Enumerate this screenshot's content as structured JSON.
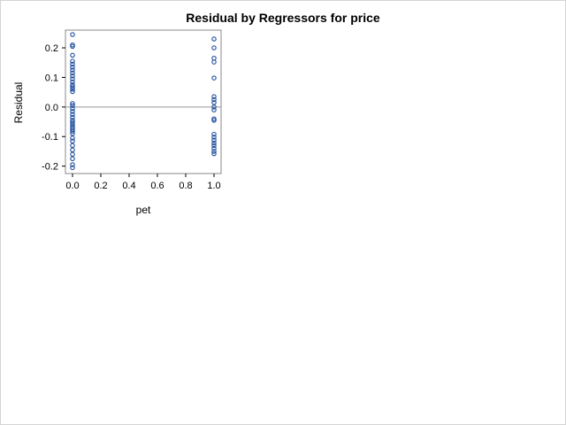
{
  "chart_data": {
    "type": "scatter",
    "title": "Residual by Regressors for price",
    "xlabel": "pet",
    "ylabel": "Residual",
    "xlim": [
      -0.05,
      1.05
    ],
    "ylim": [
      -0.225,
      0.26
    ],
    "xticks": [
      "0.0",
      "0.2",
      "0.4",
      "0.6",
      "0.8",
      "1.0"
    ],
    "xtick_values": [
      0.0,
      0.2,
      0.4,
      0.6,
      0.8,
      1.0
    ],
    "yticks": [
      "-0.2",
      "-0.1",
      "0.0",
      "0.1",
      "0.2"
    ],
    "ytick_values": [
      -0.2,
      -0.1,
      0.0,
      0.1,
      0.2
    ],
    "reference_line_y": 0.0,
    "grid": false,
    "colors": {
      "marker": "#1f4e9c",
      "refline": "#9a9a9a",
      "frame": "#8a8a8a"
    },
    "series": [
      {
        "points": [
          {
            "x": 0,
            "y": 0.245
          },
          {
            "x": 0,
            "y": 0.21
          },
          {
            "x": 0,
            "y": 0.205
          },
          {
            "x": 0,
            "y": 0.175
          },
          {
            "x": 0,
            "y": 0.155
          },
          {
            "x": 0,
            "y": 0.145
          },
          {
            "x": 0,
            "y": 0.135
          },
          {
            "x": 0,
            "y": 0.125
          },
          {
            "x": 0,
            "y": 0.115
          },
          {
            "x": 0,
            "y": 0.105
          },
          {
            "x": 0,
            "y": 0.095
          },
          {
            "x": 0,
            "y": 0.085
          },
          {
            "x": 0,
            "y": 0.075
          },
          {
            "x": 0,
            "y": 0.068
          },
          {
            "x": 0,
            "y": 0.06
          },
          {
            "x": 0,
            "y": 0.052
          },
          {
            "x": 0,
            "y": 0.012
          },
          {
            "x": 0,
            "y": 0.005
          },
          {
            "x": 0,
            "y": -0.005
          },
          {
            "x": 0,
            "y": -0.015
          },
          {
            "x": 0,
            "y": -0.025
          },
          {
            "x": 0,
            "y": -0.035
          },
          {
            "x": 0,
            "y": -0.045
          },
          {
            "x": 0,
            "y": -0.052
          },
          {
            "x": 0,
            "y": -0.06
          },
          {
            "x": 0,
            "y": -0.068
          },
          {
            "x": 0,
            "y": -0.075
          },
          {
            "x": 0,
            "y": -0.082
          },
          {
            "x": 0,
            "y": -0.09
          },
          {
            "x": 0,
            "y": -0.105
          },
          {
            "x": 0,
            "y": -0.115
          },
          {
            "x": 0,
            "y": -0.13
          },
          {
            "x": 0,
            "y": -0.145
          },
          {
            "x": 0,
            "y": -0.16
          },
          {
            "x": 0,
            "y": -0.175
          },
          {
            "x": 0,
            "y": -0.195
          },
          {
            "x": 0,
            "y": -0.205
          },
          {
            "x": 1,
            "y": 0.23
          },
          {
            "x": 1,
            "y": 0.2
          },
          {
            "x": 1,
            "y": 0.165
          },
          {
            "x": 1,
            "y": 0.152
          },
          {
            "x": 1,
            "y": 0.098
          },
          {
            "x": 1,
            "y": 0.035
          },
          {
            "x": 1,
            "y": 0.025
          },
          {
            "x": 1,
            "y": 0.015
          },
          {
            "x": 1,
            "y": 0.0
          },
          {
            "x": 1,
            "y": -0.01
          },
          {
            "x": 1,
            "y": -0.04
          },
          {
            "x": 1,
            "y": -0.045
          },
          {
            "x": 1,
            "y": -0.092
          },
          {
            "x": 1,
            "y": -0.102
          },
          {
            "x": 1,
            "y": -0.112
          },
          {
            "x": 1,
            "y": -0.122
          },
          {
            "x": 1,
            "y": -0.13
          },
          {
            "x": 1,
            "y": -0.14
          },
          {
            "x": 1,
            "y": -0.15
          },
          {
            "x": 1,
            "y": -0.158
          }
        ]
      }
    ]
  }
}
